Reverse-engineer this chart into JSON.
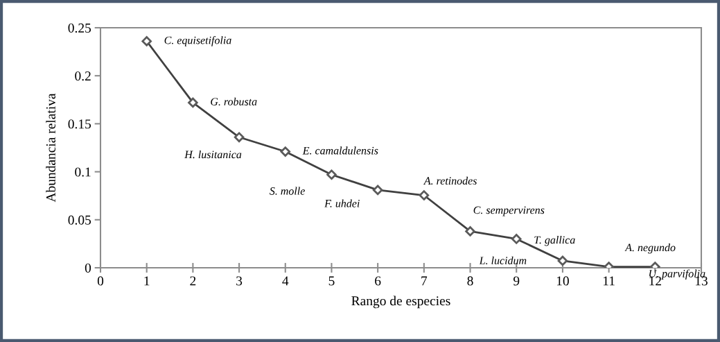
{
  "chart_data": {
    "type": "line",
    "xlabel": "Rango de especies",
    "ylabel": "Abundancia relativa",
    "x": [
      1,
      2,
      3,
      4,
      5,
      6,
      7,
      8,
      9,
      10,
      11,
      12
    ],
    "series": [
      {
        "color": "#404040",
        "values": [
          0.236,
          0.172,
          0.136,
          0.121,
          0.097,
          0.081,
          0.0755,
          0.038,
          0.03,
          0.0073,
          0.001,
          0.001
        ]
      }
    ],
    "xlim": [
      0,
      13
    ],
    "xticks": [
      0,
      1,
      2,
      3,
      4,
      5,
      6,
      7,
      8,
      9,
      10,
      11,
      12,
      13
    ],
    "ylim": [
      0,
      0.25
    ],
    "yticks": [
      0,
      0.05,
      0.1,
      0.15,
      0.2,
      0.25
    ],
    "marker": "diamond",
    "line_style": "solid",
    "grid": false,
    "legend": false,
    "annotations": [
      {
        "text": "C. equisetifolia",
        "x": 1,
        "y": 0.236
      },
      {
        "text": "G. robusta",
        "x": 2,
        "y": 0.172
      },
      {
        "text": "H. lusitanica",
        "x": 3,
        "y": 0.136
      },
      {
        "text": "E. camaldulensis",
        "x": 4,
        "y": 0.121
      },
      {
        "text": "S. molle",
        "x": 5,
        "y": 0.097
      },
      {
        "text": "F. uhdei",
        "x": 6,
        "y": 0.081
      },
      {
        "text": "A. retinodes",
        "x": 7,
        "y": 0.0755
      },
      {
        "text": "C. sempervirens",
        "x": 8,
        "y": 0.038
      },
      {
        "text": "T. gallica",
        "x": 9,
        "y": 0.03
      },
      "L. lucidum",
      {
        "text": "A. negundo",
        "x": 11,
        "y": 0.001
      },
      {
        "text": "U. parvifolia",
        "x": 12,
        "y": 0.001
      }
    ]
  }
}
